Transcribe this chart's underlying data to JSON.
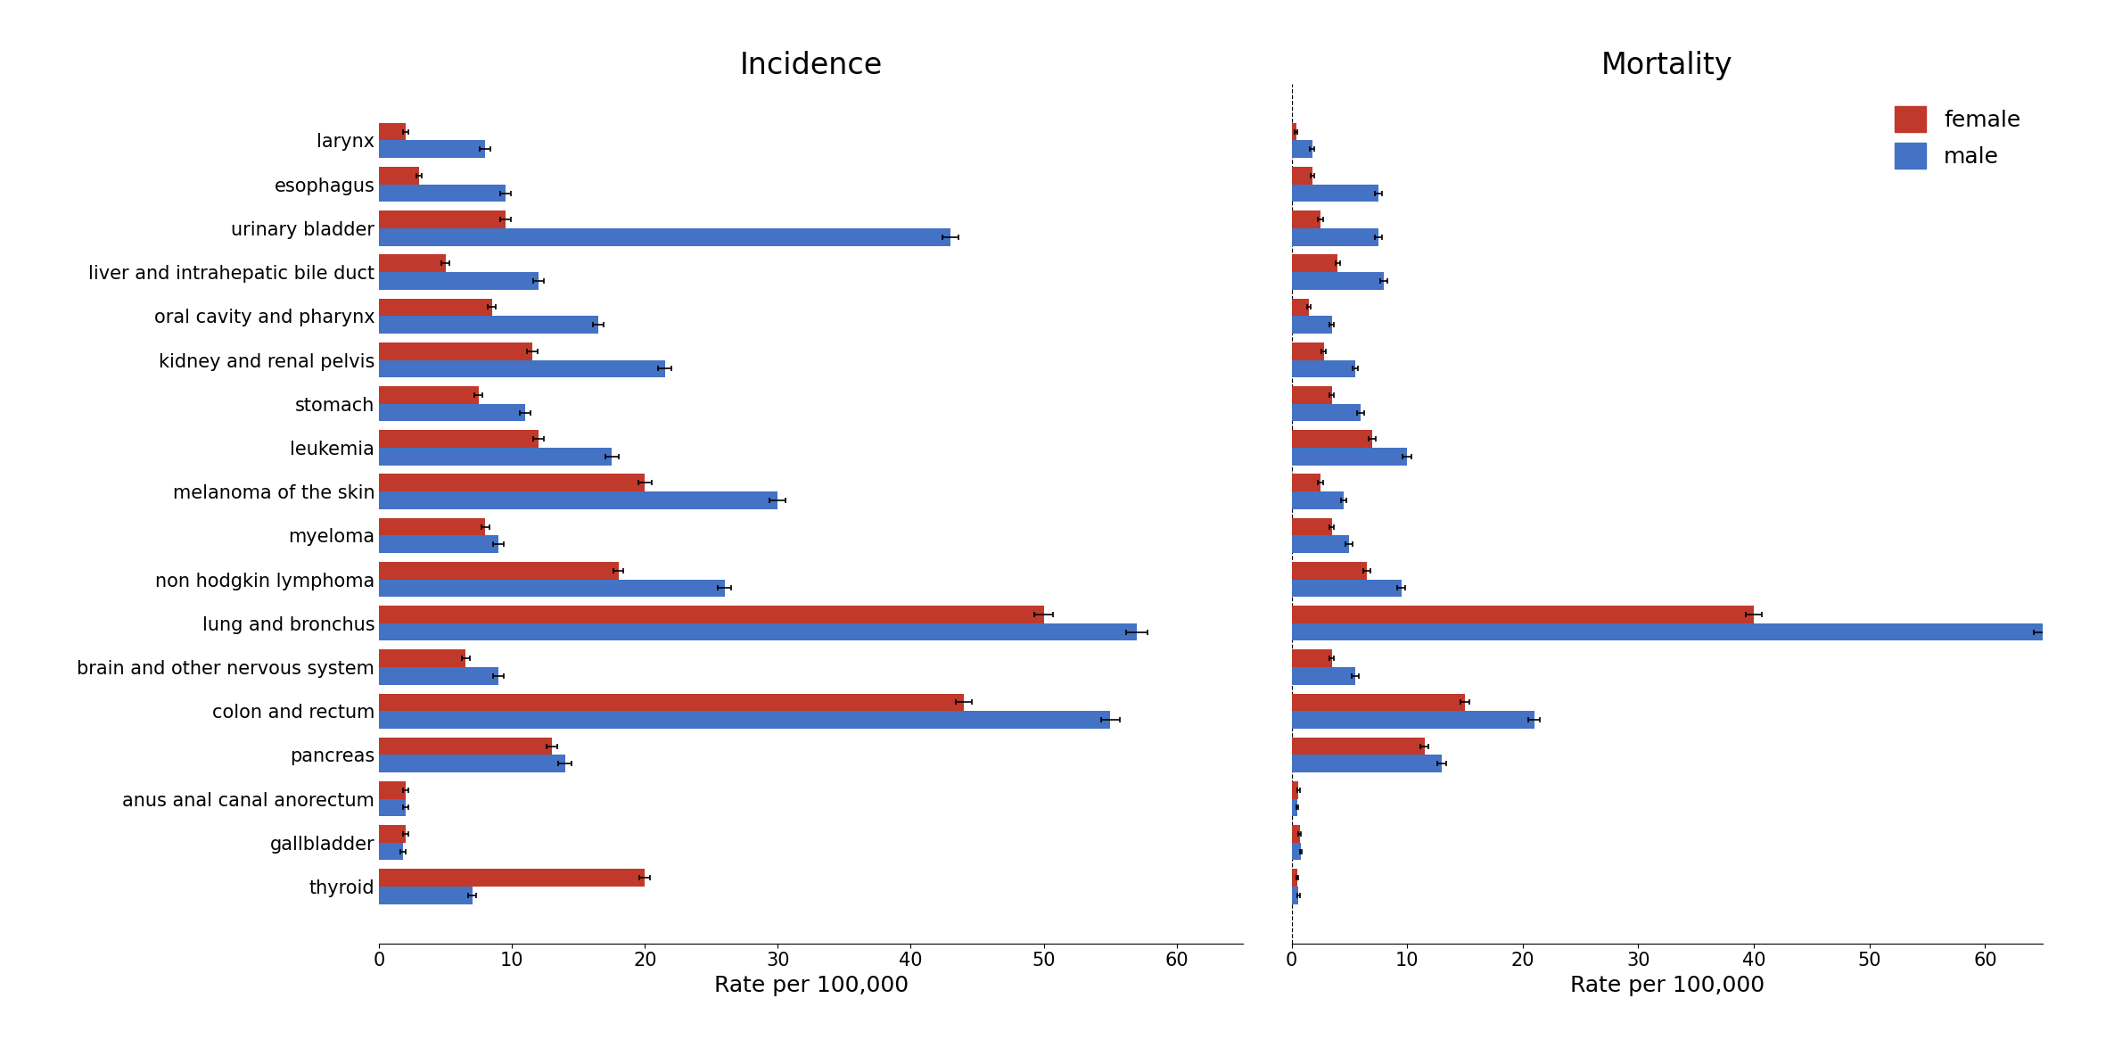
{
  "categories": [
    "larynx",
    "esophagus",
    "urinary bladder",
    "liver and intrahepatic bile duct",
    "oral cavity and pharynx",
    "kidney and renal pelvis",
    "stomach",
    "leukemia",
    "melanoma of the skin",
    "myeloma",
    "non hodgkin lymphoma",
    "lung and bronchus",
    "brain and other nervous system",
    "colon and rectum",
    "pancreas",
    "anus anal canal anorectum",
    "gallbladder",
    "thyroid"
  ],
  "incidence_male": [
    8.0,
    9.5,
    43.0,
    12.0,
    16.5,
    21.5,
    11.0,
    17.5,
    30.0,
    9.0,
    26.0,
    57.0,
    9.0,
    55.0,
    14.0,
    2.0,
    1.8,
    7.0
  ],
  "incidence_female": [
    2.0,
    3.0,
    9.5,
    5.0,
    8.5,
    11.5,
    7.5,
    12.0,
    20.0,
    8.0,
    18.0,
    50.0,
    6.5,
    44.0,
    13.0,
    2.0,
    2.0,
    20.0
  ],
  "incidence_male_err": [
    0.4,
    0.4,
    0.6,
    0.4,
    0.4,
    0.5,
    0.4,
    0.5,
    0.6,
    0.4,
    0.5,
    0.8,
    0.4,
    0.7,
    0.5,
    0.2,
    0.2,
    0.3
  ],
  "incidence_female_err": [
    0.2,
    0.2,
    0.4,
    0.3,
    0.3,
    0.4,
    0.3,
    0.4,
    0.5,
    0.3,
    0.4,
    0.7,
    0.3,
    0.6,
    0.4,
    0.2,
    0.2,
    0.4
  ],
  "mortality_male": [
    1.8,
    7.5,
    7.5,
    8.0,
    3.5,
    5.5,
    6.0,
    10.0,
    4.5,
    5.0,
    9.5,
    65.0,
    5.5,
    21.0,
    13.0,
    0.5,
    0.8,
    0.6
  ],
  "mortality_female": [
    0.4,
    1.8,
    2.5,
    4.0,
    1.5,
    2.8,
    3.5,
    7.0,
    2.5,
    3.5,
    6.5,
    40.0,
    3.5,
    15.0,
    11.5,
    0.6,
    0.7,
    0.5
  ],
  "mortality_male_err": [
    0.2,
    0.3,
    0.3,
    0.3,
    0.2,
    0.25,
    0.3,
    0.4,
    0.25,
    0.3,
    0.35,
    0.8,
    0.3,
    0.5,
    0.4,
    0.1,
    0.1,
    0.1
  ],
  "mortality_female_err": [
    0.1,
    0.15,
    0.2,
    0.2,
    0.15,
    0.2,
    0.2,
    0.3,
    0.2,
    0.2,
    0.3,
    0.7,
    0.2,
    0.4,
    0.35,
    0.1,
    0.1,
    0.1
  ],
  "male_color": "#4472C4",
  "female_color": "#C0392B",
  "bar_height": 0.4,
  "incidence_xlim": [
    0,
    65
  ],
  "mortality_xlim": [
    0,
    65
  ],
  "title_incidence": "Incidence",
  "title_mortality": "Mortality",
  "xlabel": "Rate per 100,000",
  "title_fontsize": 24,
  "label_fontsize": 18,
  "tick_fontsize": 15,
  "ytick_fontsize": 15
}
